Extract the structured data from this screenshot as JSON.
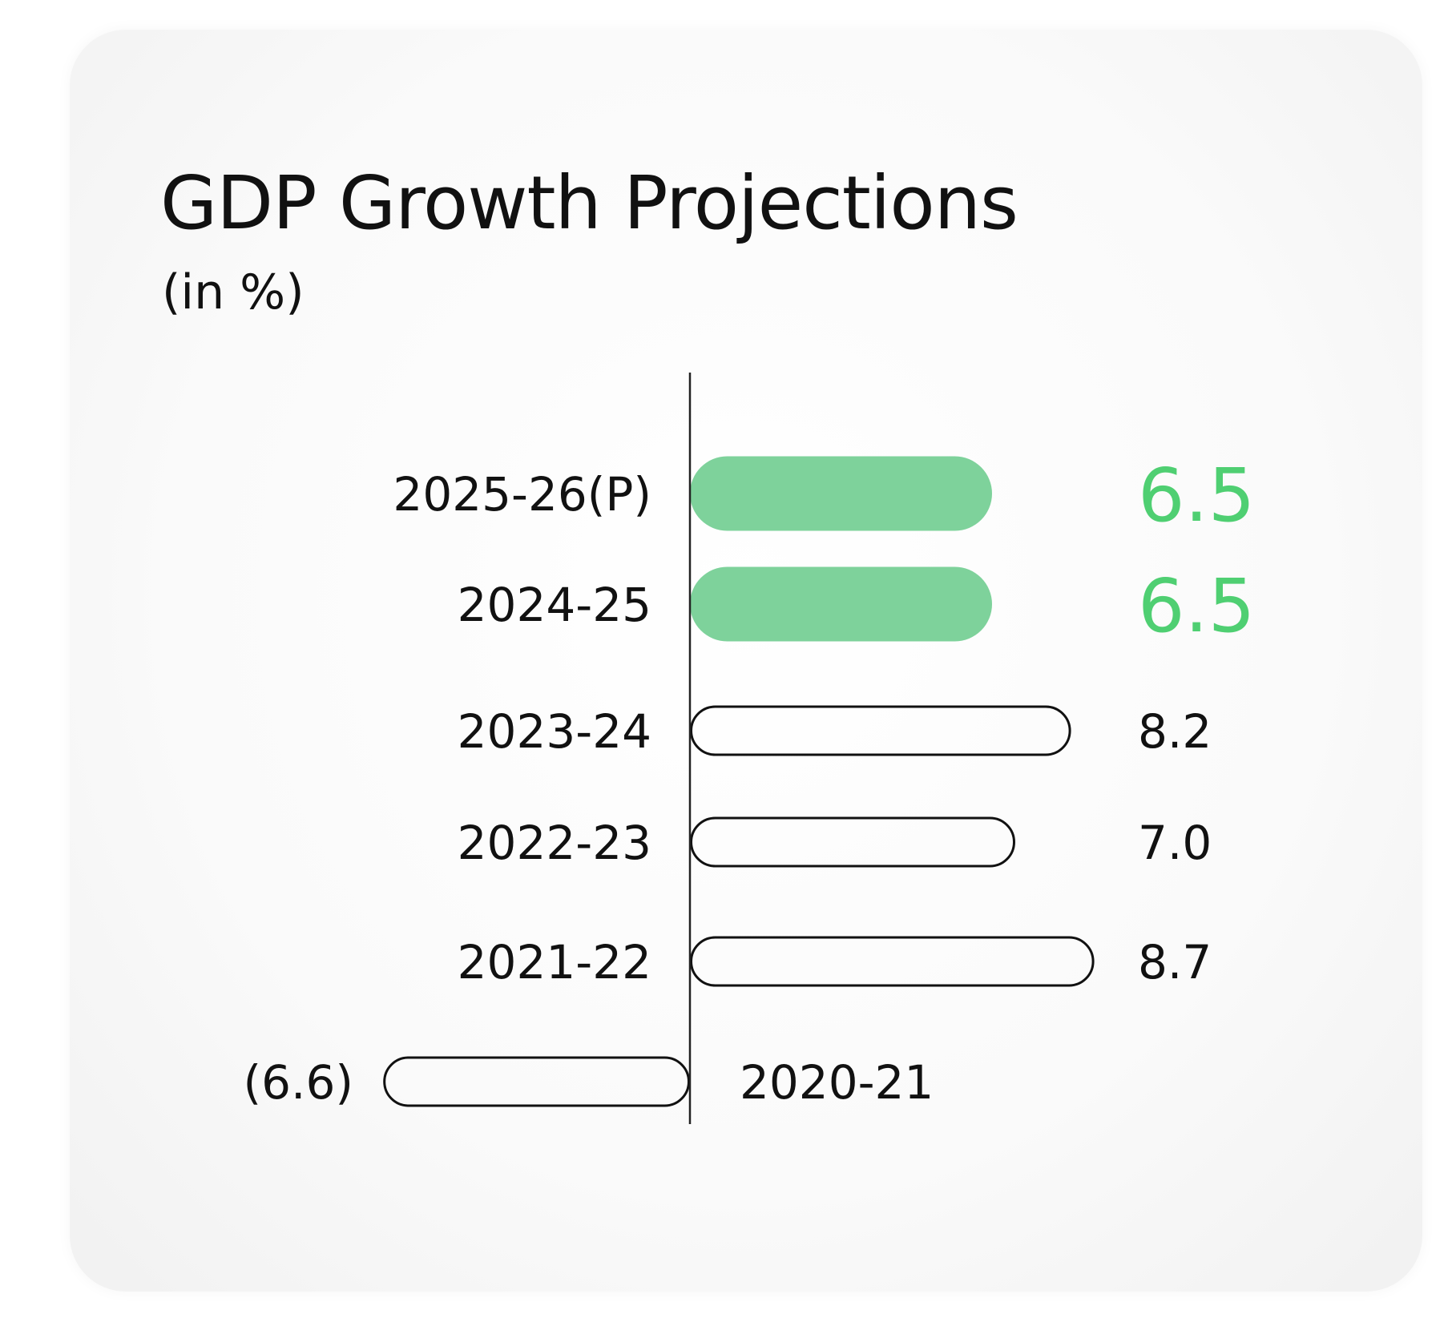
{
  "chart_data": {
    "type": "bar",
    "orientation": "horizontal",
    "title": "GDP Growth Projections",
    "subtitle": "(in %)",
    "categories": [
      "2025-26(P)",
      "2024-25",
      "2023-24",
      "2022-23",
      "2021-22",
      "2020-21"
    ],
    "values": [
      6.5,
      6.5,
      8.2,
      7.0,
      8.7,
      -6.6
    ],
    "value_labels": [
      "6.5",
      "6.5",
      "8.2",
      "7.0",
      "8.7",
      "(6.6)"
    ],
    "highlighted": [
      true,
      true,
      false,
      false,
      false,
      false
    ],
    "grid": false,
    "legend": "none",
    "colors": {
      "highlight_bar": "#7ed29b",
      "highlight_text": "#4fcf72",
      "outline": "#111111"
    }
  }
}
